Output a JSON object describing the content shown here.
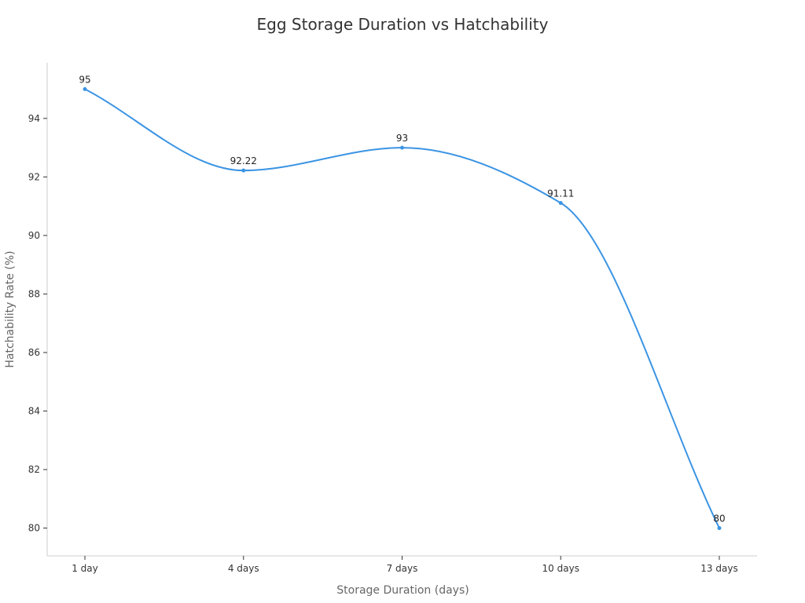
{
  "chart_data": {
    "type": "line",
    "title": "Egg Storage Duration vs Hatchability",
    "xlabel": "Storage Duration (days)",
    "ylabel": "Hatchability Rate (%)",
    "categories": [
      "1 day",
      "4 days",
      "7 days",
      "10 days",
      "13 days"
    ],
    "values": [
      95,
      92.22,
      93,
      91.11,
      80
    ],
    "data_labels": [
      "95",
      "92.22",
      "93",
      "91.11",
      "80"
    ],
    "y_ticks": [
      80,
      82,
      84,
      86,
      88,
      90,
      92,
      94
    ],
    "ylim": [
      79.05,
      95.9
    ],
    "smooth": true,
    "grid": false,
    "legend": "none",
    "colors": {
      "line": "#3b94e4",
      "axis": "#cccccc",
      "tick": "#333333"
    }
  }
}
